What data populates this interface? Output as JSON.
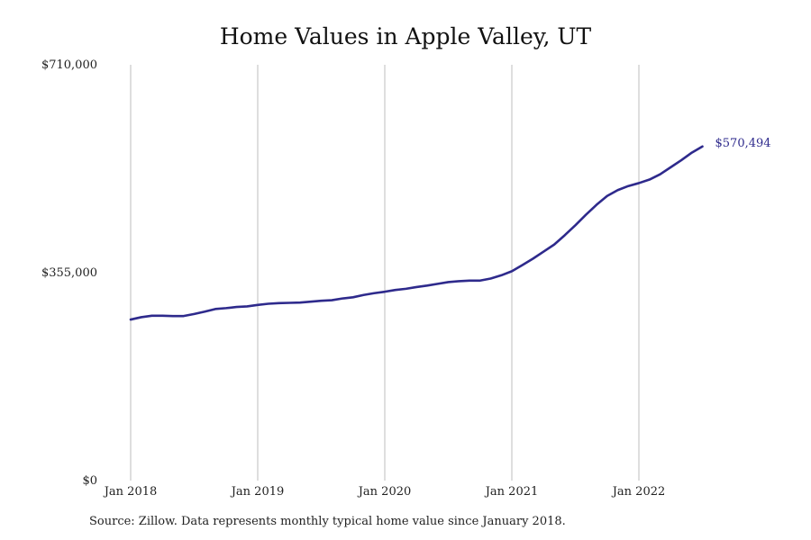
{
  "chart_data": {
    "type": "line",
    "title": "Home Values in Apple Valley, UT",
    "xlabel": "",
    "ylabel": "",
    "x_ticks": [
      "Jan 2018",
      "Jan 2019",
      "Jan 2020",
      "Jan 2021",
      "Jan 2022"
    ],
    "y_ticks": [
      "$0",
      "$355,000",
      "$710,000"
    ],
    "ylim": [
      0,
      710000
    ],
    "xlim": [
      "2018-01",
      "2022-07"
    ],
    "grid": {
      "vertical": true,
      "horizontal": false
    },
    "line_color": "#2e2a8c",
    "grid_color": "#bdbdbd",
    "end_label": "$570,494",
    "series": [
      {
        "x": [
          "2018-01",
          "2018-02",
          "2018-03",
          "2018-04",
          "2018-05",
          "2018-06",
          "2018-07",
          "2018-08",
          "2018-09",
          "2018-10",
          "2018-11",
          "2018-12",
          "2019-01",
          "2019-02",
          "2019-03",
          "2019-04",
          "2019-05",
          "2019-06",
          "2019-07",
          "2019-08",
          "2019-09",
          "2019-10",
          "2019-11",
          "2019-12",
          "2020-01",
          "2020-02",
          "2020-03",
          "2020-04",
          "2020-05",
          "2020-06",
          "2020-07",
          "2020-08",
          "2020-09",
          "2020-10",
          "2020-11",
          "2020-12",
          "2021-01",
          "2021-02",
          "2021-03",
          "2021-04",
          "2021-05",
          "2021-06",
          "2021-07",
          "2021-08",
          "2021-09",
          "2021-10",
          "2021-11",
          "2021-12",
          "2022-01",
          "2022-02",
          "2022-03",
          "2022-04",
          "2022-05",
          "2022-06",
          "2022-07"
        ],
        "values": [
          275000,
          279000,
          281500,
          281500,
          281000,
          281000,
          284500,
          288500,
          293000,
          294500,
          296500,
          297500,
          300000,
          302000,
          303000,
          303500,
          304000,
          305500,
          307000,
          308000,
          311000,
          313000,
          317000,
          320000,
          322500,
          325500,
          327500,
          330500,
          333000,
          336000,
          339000,
          340500,
          341500,
          341500,
          345000,
          350500,
          357500,
          368000,
          379000,
          391000,
          403000,
          419000,
          436000,
          454000,
          471000,
          486000,
          496000,
          503000,
          508000,
          514000,
          523000,
          535000,
          547000,
          560000,
          570494
        ]
      }
    ]
  },
  "footnote": "Source: Zillow. Data represents monthly typical home value since January 2018."
}
